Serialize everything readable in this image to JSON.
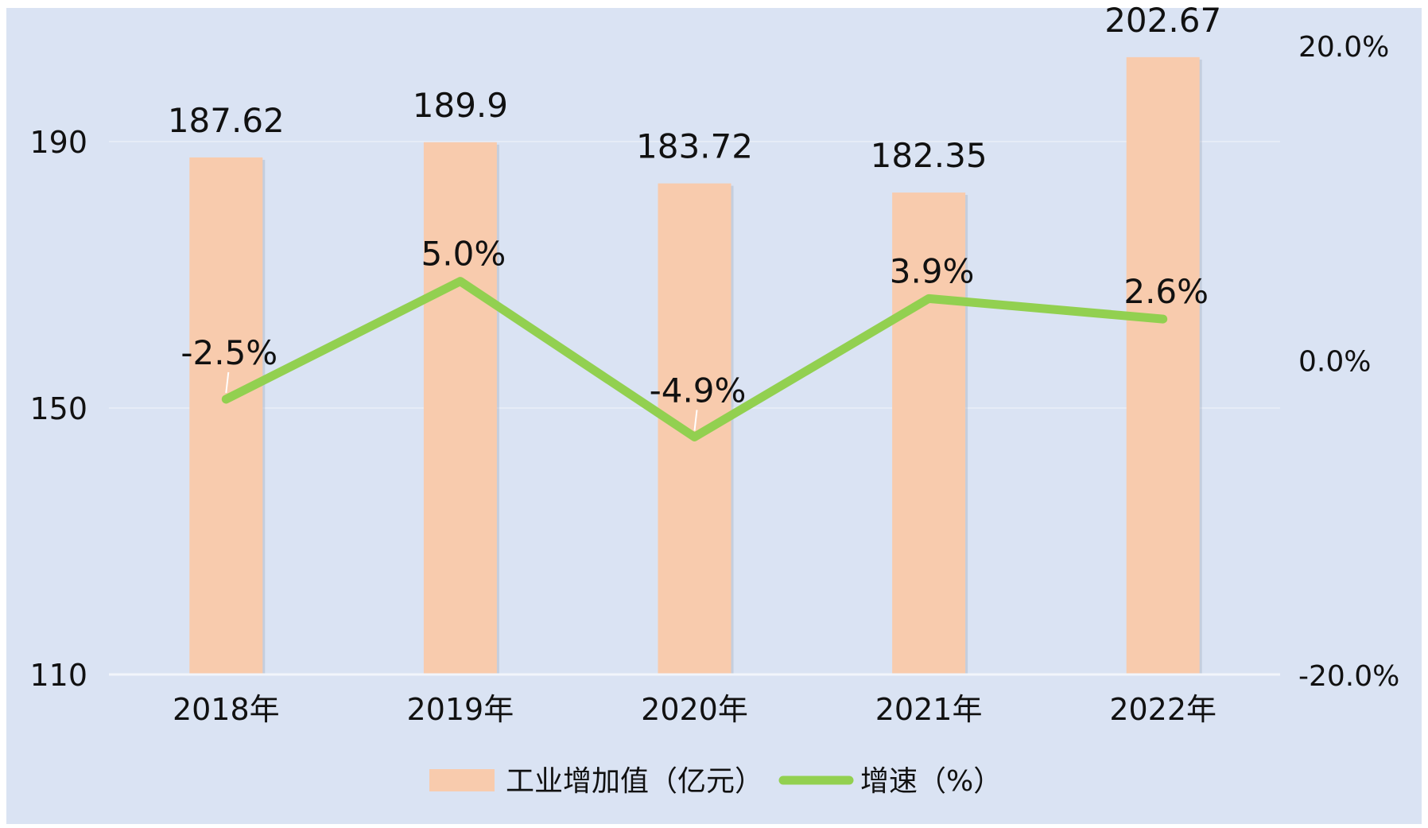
{
  "chart_data": {
    "type": "bar",
    "categories": [
      "2018年",
      "2019年",
      "2020年",
      "2021年",
      "2022年"
    ],
    "series": [
      {
        "name": "工业增加值（亿元）",
        "type": "bar",
        "axis": "left",
        "values": [
          187.62,
          189.9,
          183.72,
          182.35,
          202.67
        ],
        "labels": [
          "187.62",
          "189.9",
          "183.72",
          "182.35",
          "202.67"
        ],
        "color": "#F8CBAD"
      },
      {
        "name": "增速（%）",
        "type": "line",
        "axis": "right",
        "values": [
          -2.5,
          5.0,
          -4.9,
          3.9,
          2.6
        ],
        "labels": [
          "-2.5%",
          "5.0%",
          "-4.9%",
          "3.9%",
          "2.6%"
        ],
        "color": "#92D050"
      }
    ],
    "y_left": {
      "min": 110,
      "max": 190,
      "ticks": [
        "110",
        "150",
        "190"
      ],
      "tick_values": [
        110,
        150,
        190
      ]
    },
    "y_right": {
      "min": -20,
      "max": 20,
      "ticks": [
        "-20.0%",
        "0.0%",
        "20.0%"
      ],
      "tick_values": [
        -20,
        0,
        20
      ]
    },
    "grid": true,
    "legend_position": "bottom",
    "background_color": "#DAE3F3",
    "grid_color": "#E6ECF7"
  }
}
